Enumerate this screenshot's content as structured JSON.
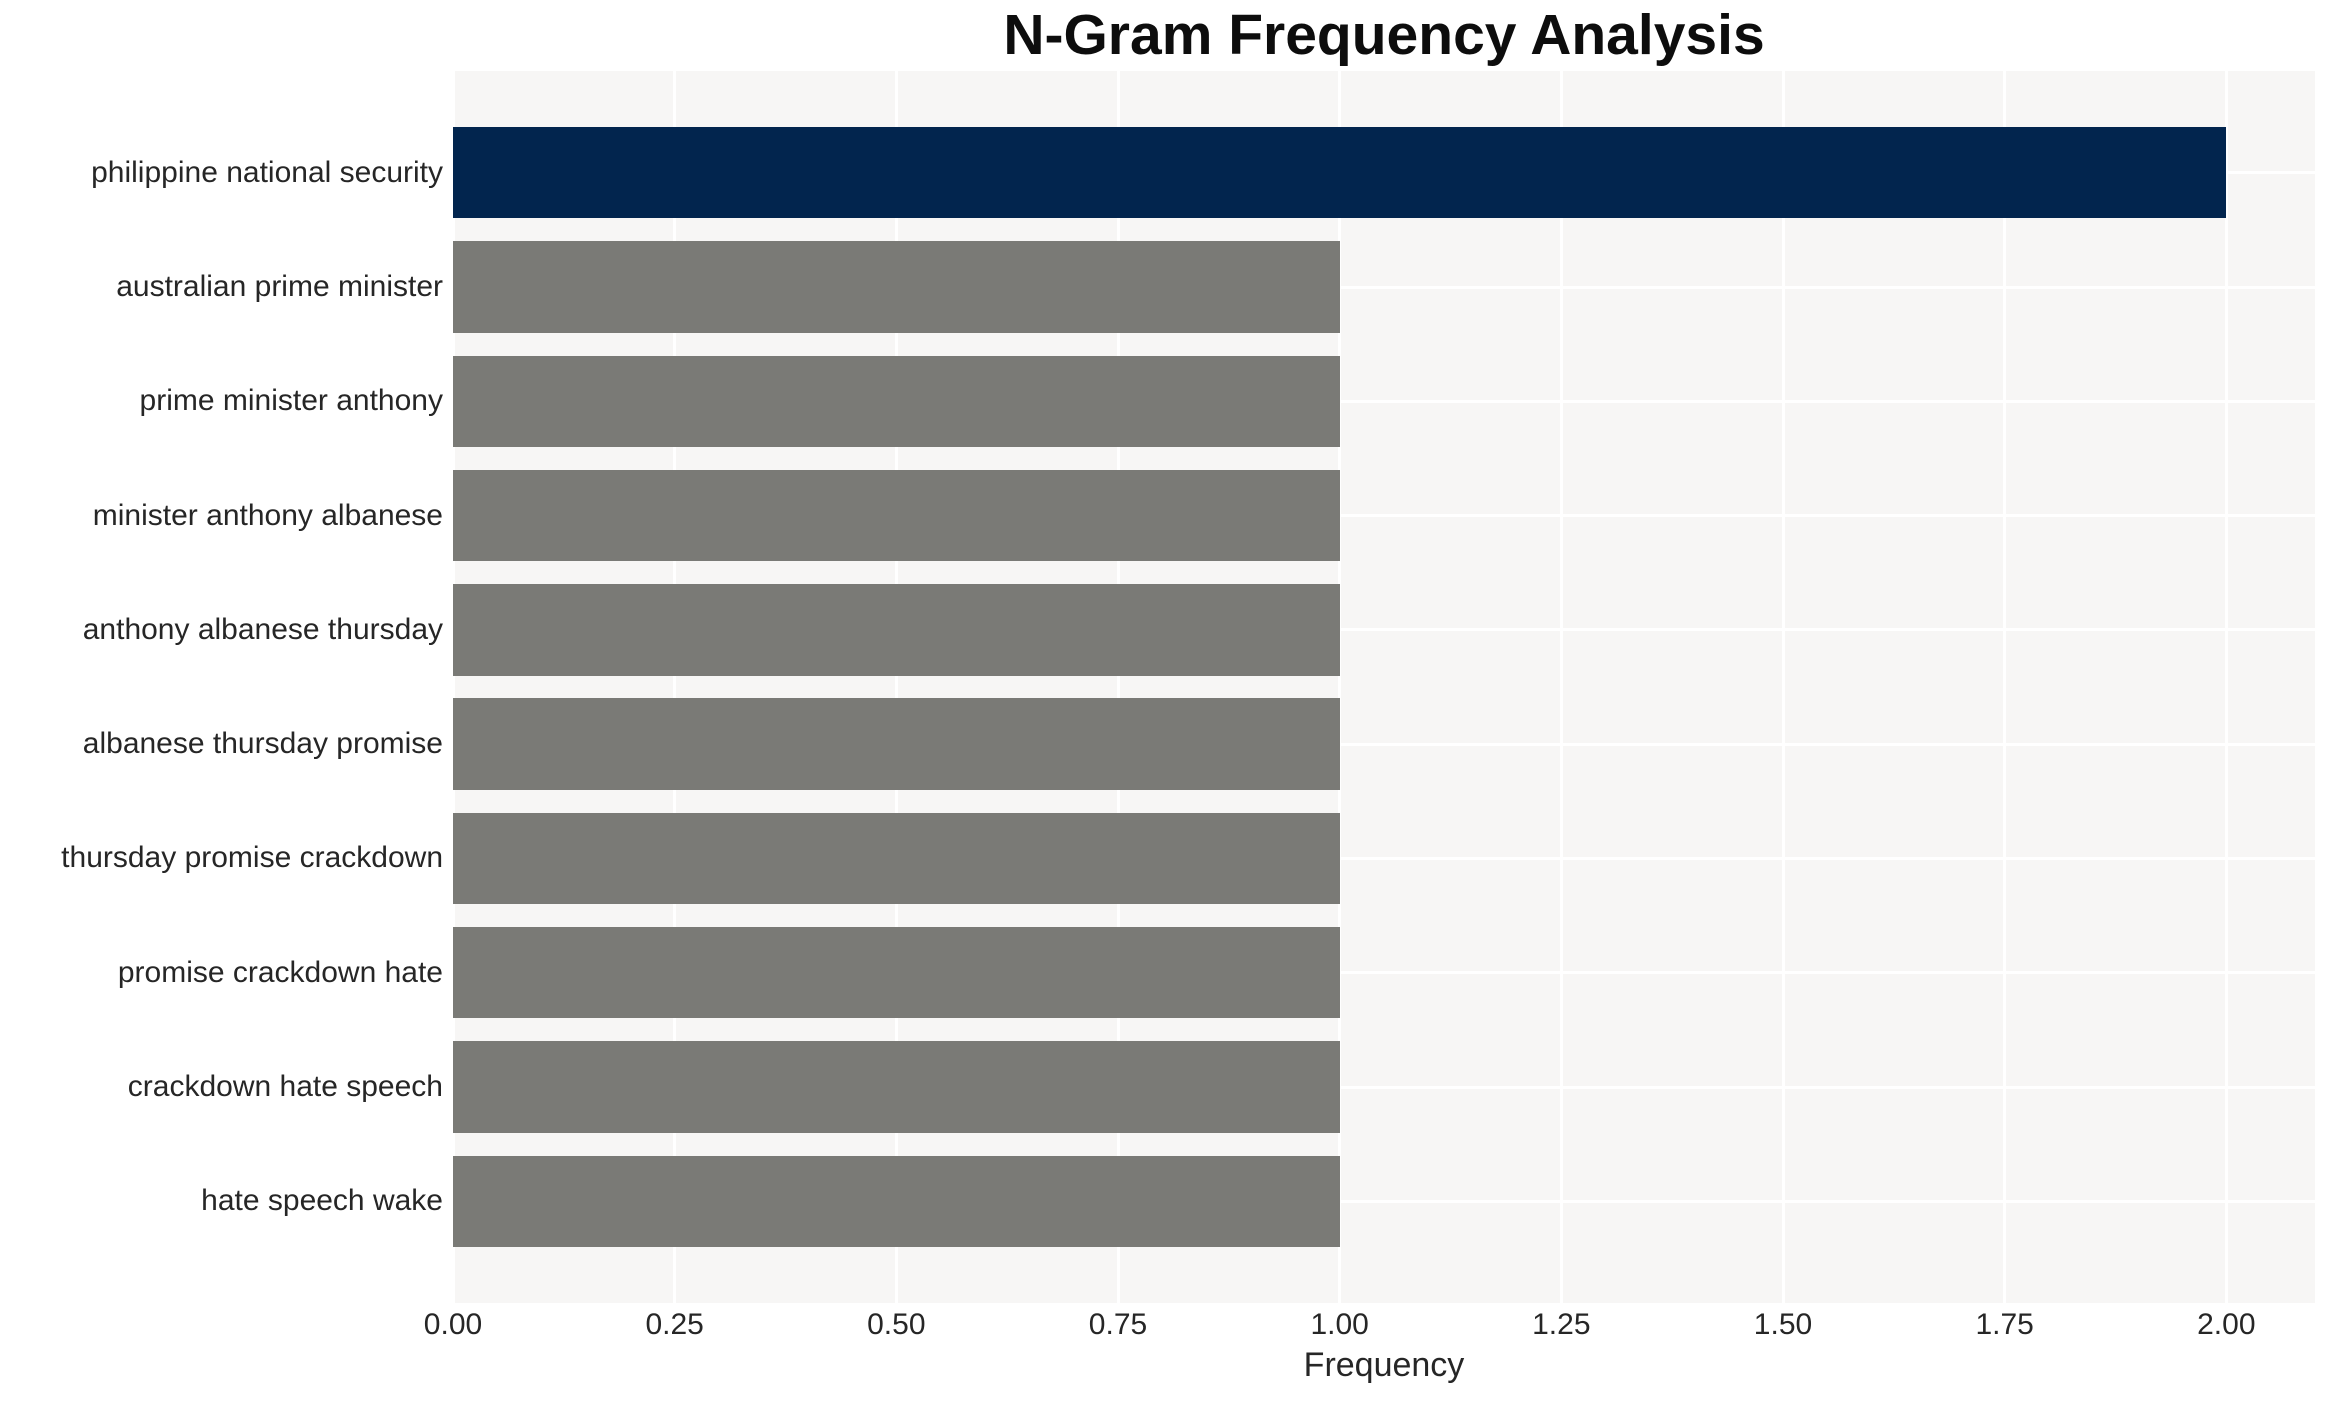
{
  "chart_data": {
    "type": "bar",
    "orientation": "horizontal",
    "title": "N-Gram Frequency Analysis",
    "xlabel": "Frequency",
    "ylabel": "",
    "categories": [
      "philippine national security",
      "australian prime minister",
      "prime minister anthony",
      "minister anthony albanese",
      "anthony albanese thursday",
      "albanese thursday promise",
      "thursday promise crackdown",
      "promise crackdown hate",
      "crackdown hate speech",
      "hate speech wake"
    ],
    "values": [
      2,
      1,
      1,
      1,
      1,
      1,
      1,
      1,
      1,
      1
    ],
    "bar_colors": [
      "#02254e",
      "#7a7a76",
      "#7a7a76",
      "#7a7a76",
      "#7a7a76",
      "#7a7a76",
      "#7a7a76",
      "#7a7a76",
      "#7a7a76",
      "#7a7a76"
    ],
    "xlim": [
      0,
      2.1
    ],
    "xticks": [
      0,
      0.25,
      0.5,
      0.75,
      1.0,
      1.25,
      1.5,
      1.75,
      2.0
    ],
    "xtick_labels": [
      "0.00",
      "0.25",
      "0.50",
      "0.75",
      "1.00",
      "1.25",
      "1.50",
      "1.75",
      "2.00"
    ],
    "grid": true,
    "legend_position": "none",
    "colors": {
      "plot_background": "#f7f6f5",
      "figure_background": "#ffffff",
      "gridline": "#ffffff",
      "tick_text": "#262626",
      "title_text": "#0d0d0d",
      "bar_highlight": "#02254e",
      "bar_default": "#7a7a76"
    }
  }
}
